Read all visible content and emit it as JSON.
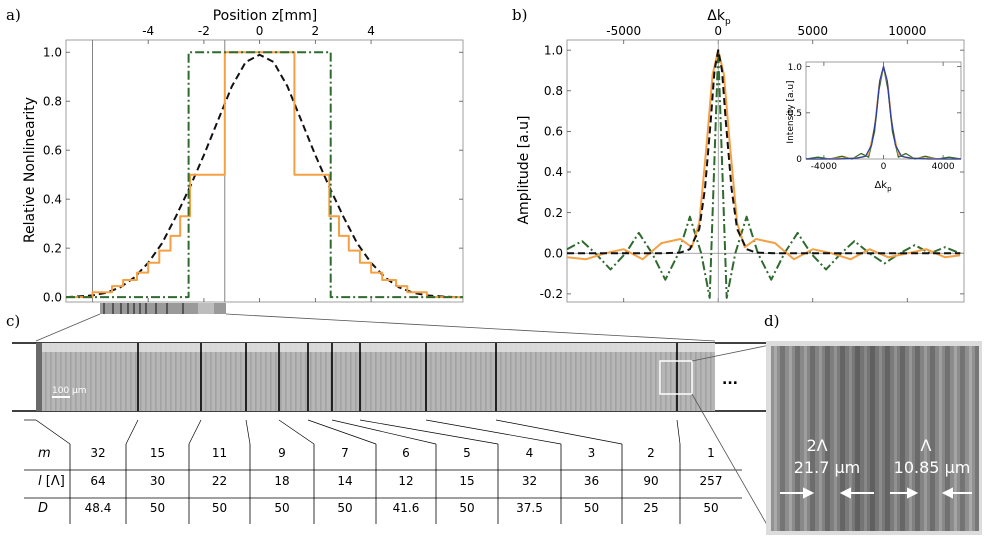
{
  "panel_labels": {
    "a": "a)",
    "b": "b)",
    "c": "c)",
    "d": "d)"
  },
  "chart_data": [
    {
      "type": "line",
      "panel": "a",
      "title": "",
      "xlabel": "Position z[mm]",
      "ylabel": "Relative Nonlinearity",
      "xlim": [
        -6.95,
        7.3
      ],
      "ylim": [
        -0.02,
        1.05
      ],
      "xticks": [
        -4,
        -2,
        0,
        2,
        4
      ],
      "yticks": [
        0.0,
        0.2,
        0.4,
        0.6,
        0.8,
        1.0
      ],
      "vertical_lines": [
        -6.0,
        -1.25
      ],
      "series": [
        {
          "style": "dashed",
          "color": "#111111",
          "x": [
            -6.95,
            -6.5,
            -6,
            -5.5,
            -5,
            -4.5,
            -4,
            -3.5,
            -3,
            -2.5,
            -2,
            -1.5,
            -1,
            -0.5,
            0,
            0.5,
            1,
            1.5,
            2,
            2.5,
            3,
            3.5,
            4,
            4.5,
            5,
            5.5,
            6,
            6.5,
            7,
            7.3
          ],
          "y": [
            0.0,
            0.003,
            0.007,
            0.018,
            0.04,
            0.08,
            0.14,
            0.22,
            0.33,
            0.45,
            0.58,
            0.72,
            0.86,
            0.96,
            0.99,
            0.96,
            0.86,
            0.72,
            0.58,
            0.45,
            0.33,
            0.22,
            0.14,
            0.08,
            0.04,
            0.018,
            0.007,
            0.003,
            0.0,
            0.0
          ]
        },
        {
          "style": "step",
          "color": "#f4a043",
          "x": [
            -6.95,
            -6.0,
            -6.0,
            -5.3,
            -5.3,
            -4.9,
            -4.9,
            -4.4,
            -4.4,
            -4.0,
            -4.0,
            -3.6,
            -3.6,
            -3.2,
            -3.2,
            -2.85,
            -2.85,
            -2.5,
            -2.5,
            -1.25,
            -1.25,
            1.25,
            1.25,
            2.5,
            2.5,
            2.85,
            2.85,
            3.2,
            3.2,
            3.6,
            3.6,
            4.0,
            4.0,
            4.4,
            4.4,
            4.9,
            4.9,
            5.3,
            5.3,
            6.0,
            6.0,
            7.3
          ],
          "y": [
            0,
            0,
            0.02,
            0.02,
            0.045,
            0.045,
            0.07,
            0.07,
            0.1,
            0.1,
            0.14,
            0.14,
            0.19,
            0.19,
            0.25,
            0.25,
            0.33,
            0.33,
            0.5,
            0.5,
            1.0,
            1.0,
            0.5,
            0.5,
            0.33,
            0.33,
            0.25,
            0.25,
            0.19,
            0.19,
            0.14,
            0.14,
            0.1,
            0.1,
            0.07,
            0.07,
            0.045,
            0.045,
            0.02,
            0.02,
            0,
            0
          ]
        },
        {
          "style": "dashdot",
          "color": "#2f6a2f",
          "x": [
            -6.95,
            -2.55,
            -2.55,
            2.55,
            2.55,
            7.3
          ],
          "y": [
            0,
            0,
            1.0,
            1.0,
            0,
            0
          ]
        }
      ]
    },
    {
      "type": "line",
      "panel": "b",
      "title": "",
      "xlabel": "Δk",
      "xlabel_sub": "p",
      "ylabel": "Amplitude [a.u]",
      "xlim": [
        -8000,
        13000
      ],
      "ylim": [
        -0.24,
        1.05
      ],
      "xticks": [
        -5000,
        0,
        5000,
        10000
      ],
      "yticks": [
        -0.2,
        0.0,
        0.2,
        0.4,
        0.6,
        0.8,
        1.0
      ],
      "zero_lines": true,
      "series": [
        {
          "style": "dashdot",
          "color": "#2f6a2f",
          "x": [
            -8000,
            -7200,
            -6500,
            -5700,
            -4900,
            -4200,
            -3500,
            -2800,
            -2100,
            -1500,
            -900,
            -450,
            0,
            450,
            900,
            1500,
            2100,
            2800,
            3500,
            4200,
            4900,
            5700,
            6500,
            7200,
            8000,
            8800,
            9600,
            10400,
            11200,
            12000,
            12800
          ],
          "y": [
            0.02,
            0.06,
            0.0,
            -0.08,
            0.0,
            0.1,
            0.0,
            -0.13,
            0.0,
            0.18,
            0.0,
            -0.22,
            1.0,
            -0.22,
            0.0,
            0.18,
            0.0,
            -0.13,
            0.0,
            0.1,
            0.0,
            -0.08,
            0.0,
            0.06,
            0.0,
            -0.05,
            0.0,
            0.04,
            0.0,
            0.03,
            0.0
          ]
        },
        {
          "style": "solid",
          "color": "#f4a043",
          "x": [
            -8000,
            -7000,
            -6000,
            -5000,
            -4000,
            -3000,
            -2000,
            -1400,
            -1000,
            -600,
            -300,
            0,
            300,
            600,
            1000,
            1400,
            2000,
            3000,
            4000,
            5000,
            6000,
            7000,
            8000,
            9000,
            10000,
            11000,
            12000,
            12800
          ],
          "y": [
            -0.02,
            -0.03,
            0.0,
            0.02,
            -0.03,
            0.05,
            0.07,
            0.03,
            0.15,
            0.55,
            0.88,
            1.0,
            0.88,
            0.55,
            0.15,
            0.03,
            0.07,
            0.05,
            -0.03,
            0.02,
            0.0,
            -0.03,
            0.02,
            -0.02,
            0.0,
            0.02,
            -0.02,
            -0.01
          ]
        },
        {
          "style": "dashed",
          "color": "#111111",
          "x": [
            -8000,
            -3000,
            -2000,
            -1500,
            -1000,
            -700,
            -400,
            -200,
            0,
            200,
            400,
            700,
            1000,
            1500,
            2000,
            3000,
            12800
          ],
          "y": [
            0.0,
            0.0,
            0.003,
            0.02,
            0.12,
            0.32,
            0.65,
            0.9,
            1.0,
            0.9,
            0.65,
            0.32,
            0.12,
            0.02,
            0.003,
            0.0,
            0.0
          ]
        }
      ]
    },
    {
      "type": "line",
      "panel": "b-inset",
      "title": "",
      "xlabel": "Δk",
      "xlabel_sub": "p",
      "ylabel": "Intensity [a.u]",
      "xlim": [
        -5200,
        5200
      ],
      "ylim": [
        0,
        1.05
      ],
      "xticks": [
        -4000,
        0,
        4000
      ],
      "yticks": [
        0,
        0.5,
        1
      ],
      "ytick_labels": [
        "0",
        "0.5",
        "1.0"
      ],
      "series": [
        {
          "style": "solid",
          "color": "#2f6a2f",
          "x": [
            -5200,
            -4400,
            -3600,
            -2800,
            -2100,
            -1500,
            -1000,
            -600,
            -300,
            0,
            300,
            600,
            1000,
            1500,
            2100,
            2800,
            3600,
            4400,
            5200
          ],
          "y": [
            0.0,
            0.02,
            0.0,
            0.03,
            0.0,
            0.06,
            0.02,
            0.3,
            0.75,
            1.0,
            0.75,
            0.3,
            0.02,
            0.06,
            0.0,
            0.03,
            0.0,
            0.02,
            0.0
          ]
        },
        {
          "style": "solid",
          "color": "#f4a043",
          "x": [
            -5200,
            -4000,
            -3000,
            -2000,
            -1400,
            -1000,
            -600,
            -300,
            0,
            300,
            600,
            1000,
            1400,
            2000,
            3000,
            4000,
            5200
          ],
          "y": [
            0.0,
            0.0,
            0.01,
            0.01,
            0.02,
            0.05,
            0.35,
            0.8,
            1.0,
            0.8,
            0.35,
            0.05,
            0.02,
            0.01,
            0.01,
            0.0,
            0.0
          ]
        },
        {
          "style": "solid",
          "color": "#2b3f9e",
          "x": [
            -5200,
            -3000,
            -1800,
            -1200,
            -800,
            -500,
            -250,
            0,
            250,
            500,
            800,
            1200,
            1800,
            3000,
            5200
          ],
          "y": [
            0.0,
            0.0,
            0.01,
            0.03,
            0.15,
            0.45,
            0.85,
            1.0,
            0.85,
            0.45,
            0.15,
            0.03,
            0.01,
            0.0,
            0.0
          ]
        }
      ]
    }
  ],
  "panel_c": {
    "scale_bar": "100 µm",
    "ellipsis": "...",
    "table": {
      "row_labels": [
        "m",
        "l [Λ]",
        "D"
      ],
      "m": [
        "32",
        "15",
        "11",
        "9",
        "7",
        "6",
        "5",
        "4",
        "3",
        "2",
        "1"
      ],
      "l": [
        "64",
        "30",
        "22",
        "18",
        "14",
        "12",
        "15",
        "32",
        "36",
        "90",
        "257"
      ],
      "D": [
        "48.4",
        "50",
        "50",
        "50",
        "50",
        "41.6",
        "50",
        "37.5",
        "50",
        "25",
        "50"
      ]
    }
  },
  "panel_d": {
    "label_2L": "2Λ",
    "value_2L": "21.7 µm",
    "label_L": "Λ",
    "value_L": "10.85 µm"
  }
}
